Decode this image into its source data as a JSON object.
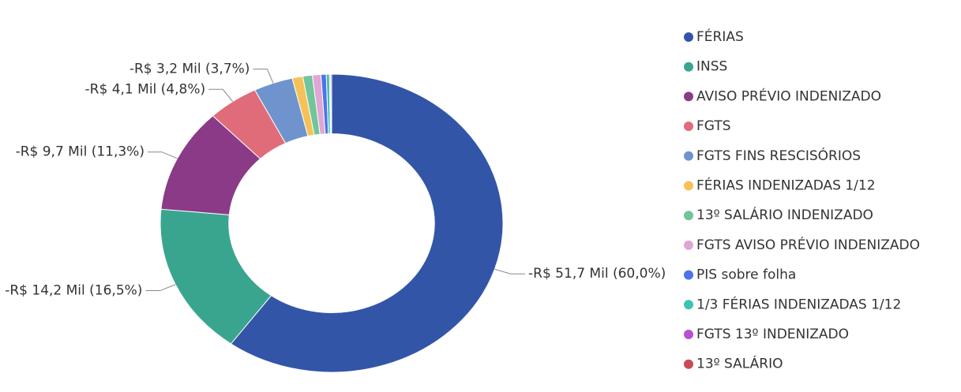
{
  "chart_data": {
    "type": "donut",
    "categories": [
      "FÉRIAS",
      "INSS",
      "AVISO PRÉVIO INDENIZADO",
      "FGTS",
      "FGTS FINS RESCISÓRIOS",
      "FÉRIAS INDENIZADAS 1/12",
      "13º SALÁRIO INDENIZADO",
      "FGTS AVISO PRÉVIO INDENIZADO",
      "PIS sobre folha",
      "1/3 FÉRIAS INDENIZADAS 1/12",
      "FGTS 13º INDENIZADO",
      "13º SALÁRIO"
    ],
    "values": [
      60.0,
      16.5,
      11.3,
      4.8,
      3.7,
      1.0,
      0.9,
      0.8,
      0.5,
      0.3,
      0.1,
      0.1
    ],
    "value_labels": [
      "-R$ 51,7 Mil (60,0%)",
      "-R$ 14,2 Mil (16,5%)",
      "-R$ 9,7 Mil (11,3%)",
      "-R$ 4,1 Mil (4,8%)",
      "-R$ 3,2 Mil (3,7%)",
      null,
      null,
      null,
      null,
      null,
      null,
      null
    ],
    "colors": [
      "#3355a8",
      "#3aa58f",
      "#8a3a87",
      "#e06c7a",
      "#6f93cc",
      "#f5c25a",
      "#72c49a",
      "#e0a6d6",
      "#4f73e8",
      "#3cc4b0",
      "#b94fd0",
      "#c94a5a"
    ],
    "legend": "right"
  }
}
